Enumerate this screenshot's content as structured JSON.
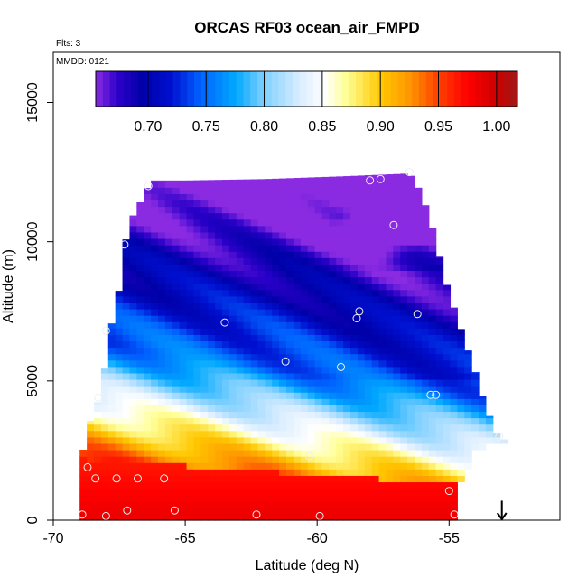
{
  "chart_data": {
    "type": "heatmap",
    "title": "ORCAS RF03 ocean_air_FMPD",
    "xlabel": "Latitude (deg N)",
    "ylabel": "Altitude (m)",
    "xlim": [
      -70,
      -50.8
    ],
    "ylim": [
      0,
      16800
    ],
    "x_ticks": [
      -70,
      -65,
      -60,
      -55
    ],
    "x_tick_labels": [
      "-70",
      "-65",
      "-60",
      "-55"
    ],
    "y_ticks": [
      0,
      5000,
      10000,
      15000
    ],
    "y_tick_labels": [
      "0",
      "5000",
      "10000",
      "15000"
    ],
    "notes": {
      "flights": "Flts: 3",
      "date": "MMDD: 0121"
    },
    "colorbar": {
      "range": [
        0.655,
        1.018
      ],
      "ticks": [
        0.7,
        0.75,
        0.8,
        0.85,
        0.9,
        0.95,
        1.0
      ],
      "tick_labels": [
        "0.70",
        "0.75",
        "0.80",
        "0.85",
        "0.90",
        "0.95",
        "1.00"
      ],
      "color_stops": [
        {
          "v": 0.655,
          "c": "#8a2be2"
        },
        {
          "v": 0.675,
          "c": "#2a00c8"
        },
        {
          "v": 0.695,
          "c": "#0000a8"
        },
        {
          "v": 0.72,
          "c": "#0010d0"
        },
        {
          "v": 0.745,
          "c": "#0060ff"
        },
        {
          "v": 0.775,
          "c": "#00a8ff"
        },
        {
          "v": 0.8,
          "c": "#7fd0ff"
        },
        {
          "v": 0.83,
          "c": "#d8ecff"
        },
        {
          "v": 0.852,
          "c": "#ffffff"
        },
        {
          "v": 0.87,
          "c": "#ffff99"
        },
        {
          "v": 0.9,
          "c": "#ffc800"
        },
        {
          "v": 0.925,
          "c": "#ff9600"
        },
        {
          "v": 0.95,
          "c": "#ff4000"
        },
        {
          "v": 0.975,
          "c": "#ff0000"
        },
        {
          "v": 1.0,
          "c": "#cc0000"
        },
        {
          "v": 1.018,
          "c": "#a01818"
        }
      ]
    },
    "field_domain": {
      "x_step": 0.27,
      "y_step": 230,
      "top_boundary": [
        [
          -69,
          1900
        ],
        [
          -68.7,
          3300
        ],
        [
          -68.3,
          4300
        ],
        [
          -68,
          5700
        ],
        [
          -67.8,
          7000
        ],
        [
          -67.5,
          8300
        ],
        [
          -67.3,
          9900
        ],
        [
          -67,
          10900
        ],
        [
          -66.6,
          11600
        ],
        [
          -66.3,
          12200
        ],
        [
          -65,
          12200
        ],
        [
          -62,
          12250
        ],
        [
          -59,
          12350
        ],
        [
          -56.5,
          12450
        ],
        [
          -56.2,
          12000
        ],
        [
          -55.9,
          11300
        ],
        [
          -55.6,
          10400
        ],
        [
          -55.3,
          9200
        ],
        [
          -55.0,
          8100
        ],
        [
          -54.7,
          7300
        ],
        [
          -54.4,
          6400
        ],
        [
          -54.1,
          5600
        ],
        [
          -53.8,
          4600
        ],
        [
          -53.5,
          3800
        ],
        [
          -53.2,
          3100
        ],
        [
          -53.0,
          2900
        ]
      ],
      "bottom_right_boundary": [
        [
          -69,
          0
        ],
        [
          -54.8,
          0
        ],
        [
          -54.6,
          1300
        ],
        [
          -54.3,
          1900
        ],
        [
          -54.0,
          2500
        ],
        [
          -53.6,
          2700
        ],
        [
          -53.0,
          2700
        ]
      ]
    },
    "observations": [
      {
        "lat": -68.7,
        "alt": 1900
      },
      {
        "lat": -68.4,
        "alt": 1500
      },
      {
        "lat": -67.6,
        "alt": 1500
      },
      {
        "lat": -66.8,
        "alt": 1500
      },
      {
        "lat": -65.8,
        "alt": 1500
      },
      {
        "lat": -68.3,
        "alt": 4400
      },
      {
        "lat": -68.0,
        "alt": 6800
      },
      {
        "lat": -67.3,
        "alt": 9900
      },
      {
        "lat": -66.4,
        "alt": 12000
      },
      {
        "lat": -63.5,
        "alt": 7100
      },
      {
        "lat": -61.2,
        "alt": 5700
      },
      {
        "lat": -60.3,
        "alt": 2300
      },
      {
        "lat": -58.4,
        "alt": 7500
      },
      {
        "lat": -58.5,
        "alt": 7250
      },
      {
        "lat": -58.0,
        "alt": 12200
      },
      {
        "lat": -57.6,
        "alt": 12250
      },
      {
        "lat": -57.1,
        "alt": 10600
      },
      {
        "lat": -56.5,
        "alt": 12500
      },
      {
        "lat": -56.2,
        "alt": 7400
      },
      {
        "lat": -55.7,
        "alt": 4500
      },
      {
        "lat": -55.5,
        "alt": 4500
      },
      {
        "lat": -53.1,
        "alt": 3000
      },
      {
        "lat": -55.0,
        "alt": 1050
      },
      {
        "lat": -54.8,
        "alt": 200
      },
      {
        "lat": -68.9,
        "alt": 200
      },
      {
        "lat": -68.0,
        "alt": 150
      },
      {
        "lat": -67.2,
        "alt": 350
      },
      {
        "lat": -65.4,
        "alt": 350
      },
      {
        "lat": -62.3,
        "alt": 200
      },
      {
        "lat": -59.9,
        "alt": 150
      },
      {
        "lat": -59.1,
        "alt": 5500
      }
    ],
    "marker": {
      "type": "down-arrow",
      "lat": -53.0,
      "alt_top": 700,
      "alt_bottom": 0
    }
  }
}
